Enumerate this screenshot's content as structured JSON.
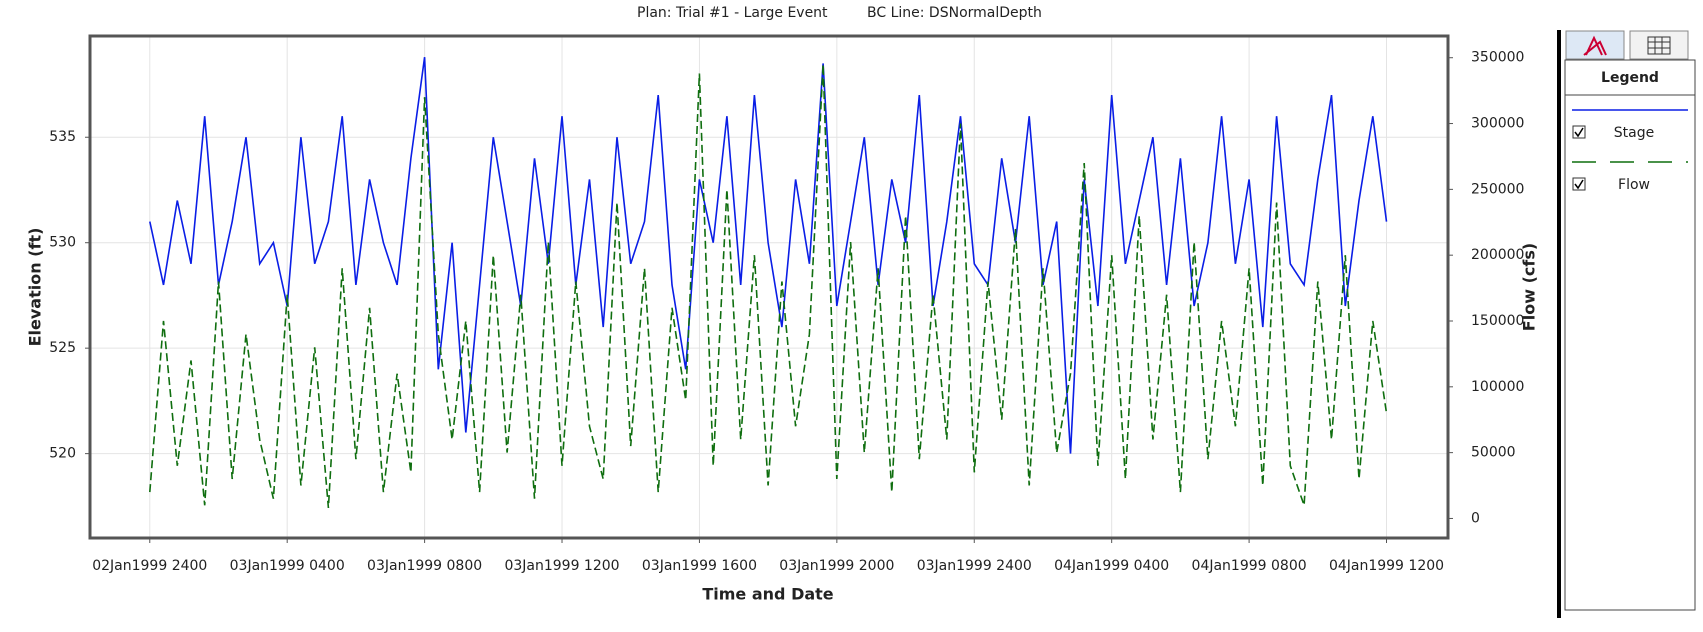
{
  "chart_data": {
    "type": "line",
    "title": "Plan: Trial #1 - Large Event",
    "subtitle": "BC Line: DSNormalDepth",
    "xlabel": "Time and Date",
    "ylabel": "Elevation (ft)",
    "y2label": "Flow (cfs)",
    "legend_title": "Legend",
    "grid": true,
    "x": [
      0,
      0.4,
      0.8,
      1.2,
      1.6,
      2,
      2.4,
      2.8,
      3.2,
      3.6,
      4,
      4.4,
      4.8,
      5.2,
      5.6,
      6,
      6.4,
      6.8,
      7.2,
      7.6,
      8,
      8.4,
      8.8,
      9.2,
      9.6,
      10,
      10.4,
      10.8,
      11.2,
      11.6,
      12,
      12.4,
      12.8,
      13.2,
      13.6,
      14,
      14.4,
      14.8,
      15.2,
      15.6,
      16,
      16.4,
      16.8,
      17.2,
      17.6,
      18,
      18.4,
      18.8,
      19.2,
      19.6,
      20,
      20.4,
      20.8,
      21.2,
      21.6,
      22,
      22.4,
      22.8,
      23.2,
      23.6,
      24,
      24.4,
      24.8,
      25.2,
      25.6,
      26,
      26.4,
      26.8,
      27.2,
      27.6,
      28,
      28.4,
      28.8,
      29.2,
      29.6,
      30,
      30.4,
      30.8,
      31.2,
      31.6,
      32,
      32.4,
      32.8,
      33.2,
      33.6,
      34,
      34.4,
      34.8,
      35.2,
      35.6,
      36
    ],
    "xlim": [
      -1.74,
      37.79
    ],
    "xticks": [
      {
        "value": 0,
        "label": "02Jan1999 2400"
      },
      {
        "value": 4,
        "label": "03Jan1999 0400"
      },
      {
        "value": 8,
        "label": "03Jan1999 0800"
      },
      {
        "value": 12,
        "label": "03Jan1999 1200"
      },
      {
        "value": 16,
        "label": "03Jan1999 1600"
      },
      {
        "value": 20,
        "label": "03Jan1999 2000"
      },
      {
        "value": 24,
        "label": "03Jan1999 2400"
      },
      {
        "value": 28,
        "label": "04Jan1999 0400"
      },
      {
        "value": 32,
        "label": "04Jan1999 0800"
      },
      {
        "value": 36,
        "label": "04Jan1999 1200"
      }
    ],
    "ylim": [
      516,
      539.8
    ],
    "yticks": [
      520,
      525,
      530,
      535
    ],
    "y2lim": [
      -14850,
      366500
    ],
    "y2ticks": [
      0,
      50000,
      100000,
      150000,
      200000,
      250000,
      300000,
      350000
    ],
    "series": [
      {
        "name": "Stage",
        "color": "#0a1ee6",
        "line_style": "solid",
        "axis": "y",
        "values": [
          531,
          528,
          532,
          529,
          536,
          528,
          531,
          535,
          529,
          530,
          527,
          535,
          529,
          531,
          536,
          528,
          533,
          530,
          528,
          534,
          538.8,
          524,
          530,
          521,
          528,
          535,
          531,
          527,
          534,
          529,
          536,
          528,
          533,
          526,
          535,
          529,
          531,
          537,
          528,
          524,
          533,
          530,
          536,
          528,
          537,
          530,
          526,
          533,
          529,
          538.5,
          527,
          531,
          535,
          528,
          533,
          530,
          537,
          527,
          531,
          536,
          529,
          528,
          534,
          530,
          536,
          528,
          531,
          520,
          533,
          527,
          537,
          529,
          532,
          535,
          528,
          534,
          527,
          530,
          536,
          529,
          533,
          526,
          536,
          529,
          528,
          533,
          537,
          527,
          532,
          536,
          531
        ]
      },
      {
        "name": "Flow",
        "color": "#0f6e0f",
        "line_style": "dashed",
        "axis": "y2",
        "values": [
          20000,
          150000,
          40000,
          120000,
          10000,
          180000,
          30000,
          140000,
          60000,
          15000,
          170000,
          25000,
          130000,
          8000,
          190000,
          45000,
          160000,
          20000,
          110000,
          35000,
          320000,
          140000,
          60000,
          150000,
          20000,
          200000,
          50000,
          170000,
          15000,
          210000,
          40000,
          180000,
          70000,
          30000,
          240000,
          55000,
          190000,
          20000,
          160000,
          90000,
          338000,
          40000,
          250000,
          60000,
          200000,
          25000,
          180000,
          70000,
          140000,
          345000,
          30000,
          210000,
          50000,
          190000,
          20000,
          230000,
          45000,
          170000,
          60000,
          300000,
          35000,
          180000,
          75000,
          220000,
          25000,
          190000,
          50000,
          110000,
          270000,
          40000,
          200000,
          30000,
          230000,
          60000,
          170000,
          20000,
          210000,
          45000,
          150000,
          70000,
          190000,
          25000,
          240000,
          40000,
          10000,
          180000,
          60000,
          200000,
          30000,
          150000,
          80000
        ]
      }
    ]
  }
}
